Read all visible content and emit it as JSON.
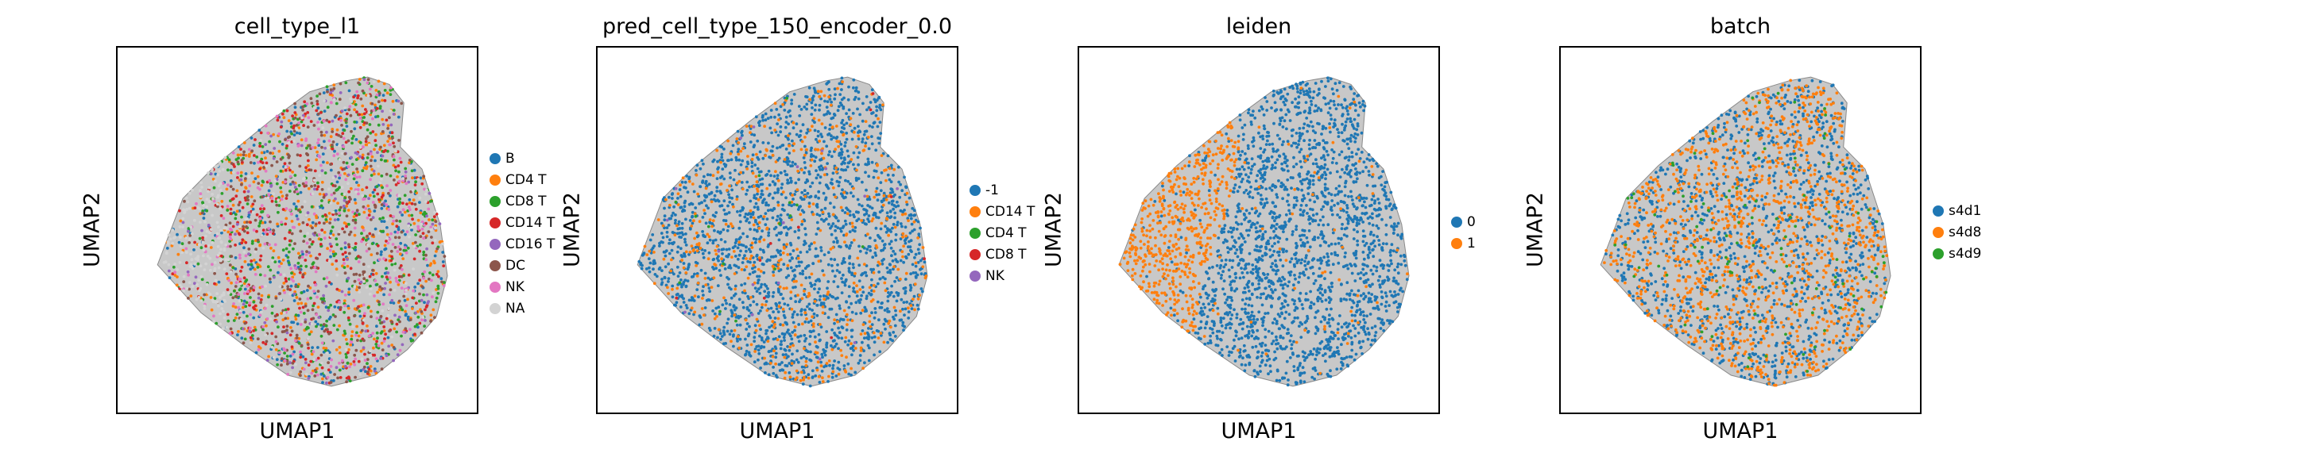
{
  "chart_data": [
    {
      "type": "scatter",
      "title": "cell_type_l1",
      "xlabel": "UMAP1",
      "ylabel": "UMAP2",
      "ticks": false,
      "legend_position": "right",
      "categories": [
        {
          "label": "B",
          "color": "#1f77b4"
        },
        {
          "label": "CD4 T",
          "color": "#ff7f0e"
        },
        {
          "label": "CD8 T",
          "color": "#2ca02c"
        },
        {
          "label": "CD14 T",
          "color": "#d62728"
        },
        {
          "label": "CD16 T",
          "color": "#9467bd"
        },
        {
          "label": "DC",
          "color": "#8c564b"
        },
        {
          "label": "NK",
          "color": "#e377c2"
        },
        {
          "label": "NA",
          "color": "#d3d3d3"
        }
      ]
    },
    {
      "type": "scatter",
      "title": "pred_cell_type_150_encoder_0.0",
      "xlabel": "UMAP1",
      "ylabel": "UMAP2",
      "ticks": false,
      "legend_position": "right",
      "categories": [
        {
          "label": "-1",
          "color": "#1f77b4"
        },
        {
          "label": "CD14 T",
          "color": "#ff7f0e"
        },
        {
          "label": "CD4 T",
          "color": "#2ca02c"
        },
        {
          "label": "CD8 T",
          "color": "#d62728"
        },
        {
          "label": "NK",
          "color": "#9467bd"
        }
      ]
    },
    {
      "type": "scatter",
      "title": "leiden",
      "xlabel": "UMAP1",
      "ylabel": "UMAP2",
      "ticks": false,
      "legend_position": "right",
      "categories": [
        {
          "label": "0",
          "color": "#1f77b4"
        },
        {
          "label": "1",
          "color": "#ff7f0e"
        }
      ]
    },
    {
      "type": "scatter",
      "title": "batch",
      "xlabel": "UMAP1",
      "ylabel": "UMAP2",
      "ticks": false,
      "legend_position": "right",
      "categories": [
        {
          "label": "s4d1",
          "color": "#1f77b4"
        },
        {
          "label": "s4d8",
          "color": "#ff7f0e"
        },
        {
          "label": "s4d9",
          "color": "#2ca02c"
        }
      ]
    }
  ]
}
